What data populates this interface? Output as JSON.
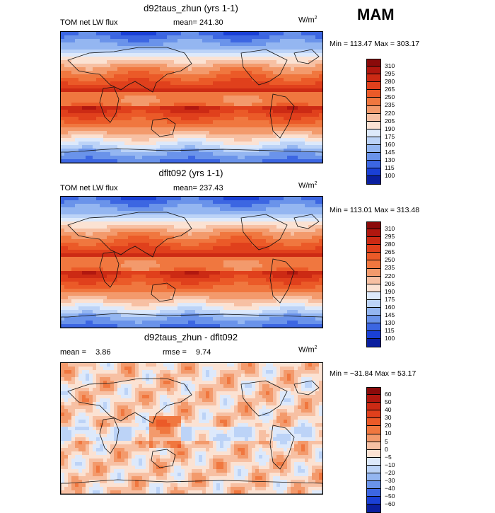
{
  "season": "MAM",
  "panels": [
    {
      "title": "d92taus_zhun (yrs 1-1)",
      "left_label": "TOM net LW flux",
      "stat_label": "mean=",
      "stat_value": "241.30",
      "units": "W/m",
      "units_exp": "2",
      "minmax": "Min = 113.47 Max = 303.17",
      "levels": [
        "310",
        "295",
        "280",
        "265",
        "250",
        "235",
        "220",
        "205",
        "190",
        "175",
        "160",
        "145",
        "130",
        "115",
        "100"
      ],
      "colors": [
        "#8b0a0a",
        "#b1170f",
        "#cc2a14",
        "#e0401c",
        "#eb5a28",
        "#f0773f",
        "#f39a6c",
        "#f7c0a3",
        "#fbe2d3",
        "#dde9fb",
        "#bcd3f7",
        "#94b6f1",
        "#6a93ea",
        "#3c66e2",
        "#1a40d6",
        "#0a1f9f"
      ],
      "style": "lw"
    },
    {
      "title": "dflt092 (yrs 1-1)",
      "left_label": "TOM net LW flux",
      "stat_label": "mean=",
      "stat_value": "237.43",
      "units": "W/m",
      "units_exp": "2",
      "minmax": "Min = 113.01 Max = 313.48",
      "levels": [
        "310",
        "295",
        "280",
        "265",
        "250",
        "235",
        "220",
        "205",
        "190",
        "175",
        "160",
        "145",
        "130",
        "115",
        "100"
      ],
      "colors": [
        "#8b0a0a",
        "#b1170f",
        "#cc2a14",
        "#e0401c",
        "#eb5a28",
        "#f0773f",
        "#f39a6c",
        "#f7c0a3",
        "#fbe2d3",
        "#dde9fb",
        "#bcd3f7",
        "#94b6f1",
        "#6a93ea",
        "#3c66e2",
        "#1a40d6",
        "#0a1f9f"
      ],
      "style": "lw"
    },
    {
      "title": "d92taus_zhun - dflt092",
      "left_label": "mean =",
      "left_value": "3.86",
      "stat_label": "rmse =",
      "stat_value": "9.74",
      "units": "W/m",
      "units_exp": "2",
      "minmax": "Min = −31.84 Max =   53.17",
      "levels": [
        "60",
        "50",
        "40",
        "30",
        "20",
        "10",
        "5",
        "0",
        "−5",
        "−10",
        "−20",
        "−30",
        "−40",
        "−50",
        "−60"
      ],
      "colors": [
        "#8b0a0a",
        "#b1170f",
        "#cc2a14",
        "#e0401c",
        "#eb5a28",
        "#f0773f",
        "#f39a6c",
        "#f7c0a3",
        "#fbe2d3",
        "#dde9fb",
        "#bcd3f7",
        "#94b6f1",
        "#6a93ea",
        "#3c66e2",
        "#1a40d6",
        "#0a1f9f"
      ],
      "style": "diff"
    }
  ]
}
